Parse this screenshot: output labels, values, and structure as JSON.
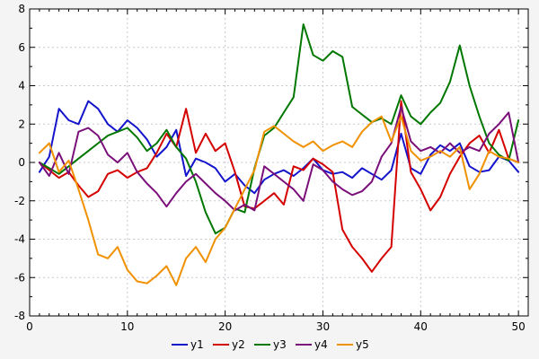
{
  "chart_data": {
    "type": "line",
    "title": "",
    "xlabel": "",
    "ylabel": "",
    "xlim": [
      0,
      51
    ],
    "ylim": [
      -8,
      8
    ],
    "x_major_ticks": [
      0,
      10,
      20,
      30,
      40,
      50
    ],
    "y_major_ticks": [
      -8,
      -6,
      -4,
      -2,
      0,
      2,
      4,
      6,
      8
    ],
    "grid": true,
    "legend_position": "bottom-center",
    "plot_background": "#ffffff",
    "page_background": "#f4f4f4",
    "grid_color": "#c8c8d0",
    "border_color": "#000000",
    "x": [
      1,
      2,
      3,
      4,
      5,
      6,
      7,
      8,
      9,
      10,
      11,
      12,
      13,
      14,
      15,
      16,
      17,
      18,
      19,
      20,
      21,
      22,
      23,
      24,
      25,
      26,
      27,
      28,
      29,
      30,
      31,
      32,
      33,
      34,
      35,
      36,
      37,
      38,
      39,
      40,
      41,
      42,
      43,
      44,
      45,
      46,
      47,
      48,
      49,
      50
    ],
    "series": [
      {
        "name": "y1",
        "color": "#1414cc",
        "values": [
          -0.5,
          0.3,
          2.8,
          2.2,
          2.0,
          3.2,
          2.8,
          2.0,
          1.6,
          2.2,
          1.8,
          1.2,
          0.3,
          0.8,
          1.7,
          -0.7,
          0.2,
          0.0,
          -0.3,
          -1.0,
          -0.6,
          -1.2,
          -1.6,
          -0.9,
          -0.6,
          -0.4,
          -0.7,
          -0.3,
          0.2,
          -0.4,
          -0.6,
          -0.5,
          -0.8,
          -0.3,
          -0.6,
          -0.9,
          -0.4,
          1.5,
          -0.3,
          -0.6,
          0.4,
          0.9,
          0.6,
          1.0,
          -0.2,
          -0.5,
          -0.4,
          0.3,
          0.1,
          -0.5
        ]
      },
      {
        "name": "y2",
        "color": "#d40000",
        "values": [
          0.0,
          -0.4,
          -0.8,
          -0.5,
          -1.2,
          -1.8,
          -1.5,
          -0.6,
          -0.4,
          -0.8,
          -0.5,
          -0.3,
          0.5,
          1.5,
          0.8,
          2.8,
          0.5,
          1.5,
          0.6,
          1.0,
          -0.5,
          -2.3,
          -2.4,
          -2.0,
          -1.6,
          -2.2,
          -0.2,
          -0.4,
          0.2,
          -0.1,
          -0.5,
          -3.5,
          -4.4,
          -5.0,
          -5.7,
          -5.0,
          -4.4,
          3.2,
          -0.5,
          -1.4,
          -2.5,
          -1.8,
          -0.6,
          0.3,
          1.0,
          1.4,
          0.5,
          1.7,
          0.2,
          0.0
        ]
      },
      {
        "name": "y3",
        "color": "#007700",
        "values": [
          0.0,
          -0.3,
          -0.6,
          -0.2,
          0.2,
          0.6,
          1.0,
          1.4,
          1.6,
          1.8,
          1.3,
          0.6,
          1.0,
          1.7,
          0.8,
          0.2,
          -1.0,
          -2.6,
          -3.7,
          -3.4,
          -2.4,
          -2.6,
          -0.3,
          1.4,
          1.8,
          2.6,
          3.4,
          7.2,
          5.6,
          5.3,
          5.8,
          5.5,
          2.9,
          2.5,
          2.1,
          2.3,
          2.0,
          3.5,
          2.4,
          2.0,
          2.6,
          3.1,
          4.2,
          6.1,
          4.0,
          2.4,
          1.0,
          0.4,
          0.1,
          2.2
        ]
      },
      {
        "name": "y4",
        "color": "#7a0f7a",
        "values": [
          0.0,
          -0.7,
          0.5,
          -0.6,
          1.6,
          1.8,
          1.4,
          0.4,
          0.0,
          0.5,
          -0.5,
          -1.1,
          -1.6,
          -2.3,
          -1.6,
          -1.0,
          -0.6,
          -1.1,
          -1.6,
          -2.0,
          -2.5,
          -2.2,
          -2.5,
          -0.2,
          -0.6,
          -1.0,
          -1.4,
          -2.0,
          -0.1,
          -0.4,
          -1.0,
          -1.4,
          -1.7,
          -1.5,
          -1.0,
          0.3,
          1.0,
          2.9,
          1.1,
          0.6,
          0.8,
          0.5,
          1.0,
          0.5,
          0.8,
          0.6,
          1.5,
          2.0,
          2.6,
          0.0
        ]
      },
      {
        "name": "y5",
        "color": "#ef9100",
        "values": [
          0.5,
          1.0,
          -0.5,
          0.1,
          -1.4,
          -3.0,
          -4.8,
          -5.0,
          -4.4,
          -5.6,
          -6.2,
          -6.3,
          -5.9,
          -5.4,
          -6.4,
          -5.0,
          -4.4,
          -5.2,
          -4.0,
          -3.4,
          -2.4,
          -1.4,
          -0.4,
          1.6,
          1.9,
          1.5,
          1.1,
          0.8,
          1.1,
          0.6,
          0.9,
          1.1,
          0.8,
          1.6,
          2.1,
          2.4,
          1.1,
          2.4,
          0.6,
          0.1,
          0.3,
          0.6,
          0.3,
          0.8,
          -1.4,
          -0.6,
          0.6,
          0.3,
          0.2,
          0.0
        ]
      }
    ],
    "legend_labels": [
      "y1",
      "y2",
      "y3",
      "y4",
      "y5"
    ]
  }
}
